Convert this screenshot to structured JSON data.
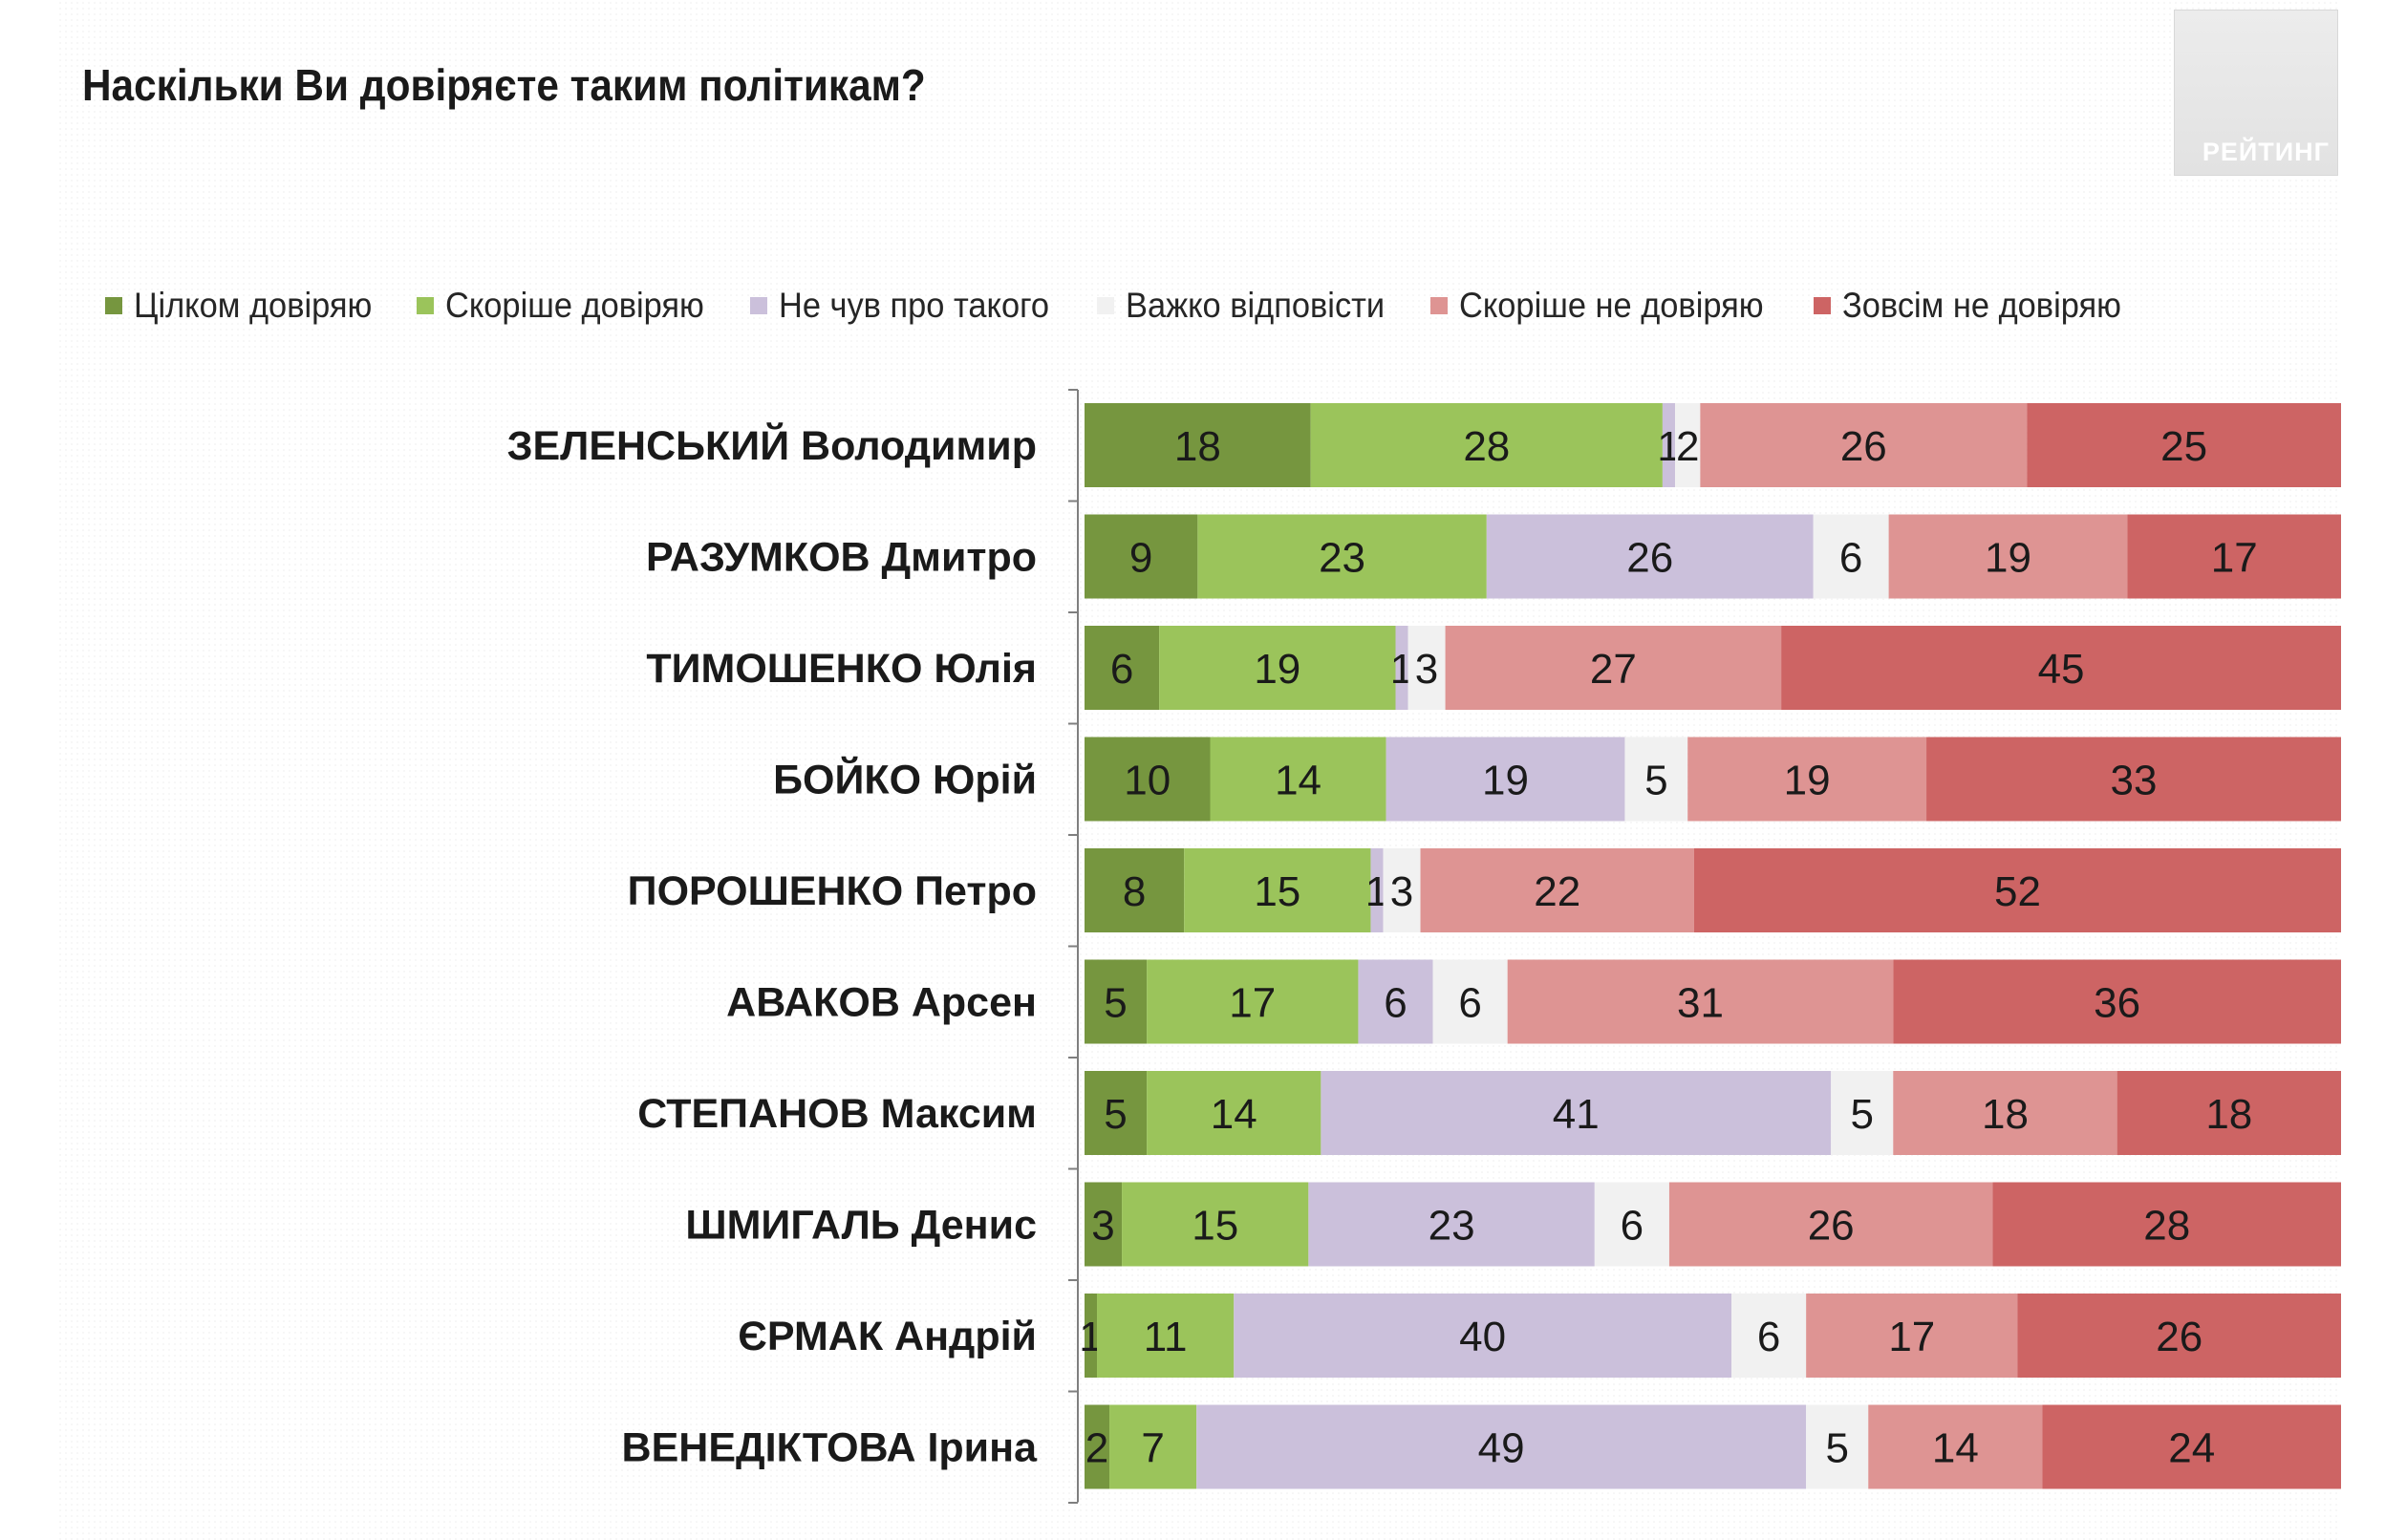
{
  "title": "Наскільки Ви довіряєте таким політикам?",
  "logo_text": "РЕЙТИНГ",
  "chart_data": {
    "type": "bar",
    "orientation": "horizontal",
    "stacked": true,
    "percent_stacked": true,
    "title": "Наскільки Ви довіряєте таким політикам?",
    "legend_position": "top",
    "categories": [
      "ЗЕЛЕНСЬКИЙ Володимир",
      "РАЗУМКОВ Дмитро",
      "ТИМОШЕНКО Юлія",
      "БОЙКО Юрій",
      "ПОРОШЕНКО Петро",
      "АВАКОВ Арсен",
      "СТЕПАНОВ Максим",
      "ШМИГАЛЬ Денис",
      "ЄРМАК Андрій",
      "ВЕНЕДІКТОВА Ірина"
    ],
    "series": [
      {
        "name": "Цілком довіряю",
        "color": "#76963f",
        "values": [
          18,
          9,
          6,
          10,
          8,
          5,
          5,
          3,
          1,
          2
        ]
      },
      {
        "name": "Скоріше довіряю",
        "color": "#9bc45b",
        "values": [
          28,
          23,
          19,
          14,
          15,
          17,
          14,
          15,
          11,
          7
        ]
      },
      {
        "name": "Не чув про такого",
        "color": "#cbc0db",
        "values": [
          1,
          26,
          1,
          19,
          1,
          6,
          41,
          23,
          40,
          49
        ]
      },
      {
        "name": "Важко відповісти",
        "color": "#f1f1f1",
        "values": [
          2,
          6,
          3,
          5,
          3,
          6,
          5,
          6,
          6,
          5
        ]
      },
      {
        "name": "Скоріше не довіряю",
        "color": "#de9493",
        "values": [
          26,
          19,
          27,
          19,
          22,
          31,
          18,
          26,
          17,
          14
        ]
      },
      {
        "name": "Зовсім не довіряю",
        "color": "#cd6464",
        "values": [
          25,
          17,
          45,
          33,
          52,
          36,
          18,
          28,
          26,
          24
        ]
      }
    ]
  }
}
